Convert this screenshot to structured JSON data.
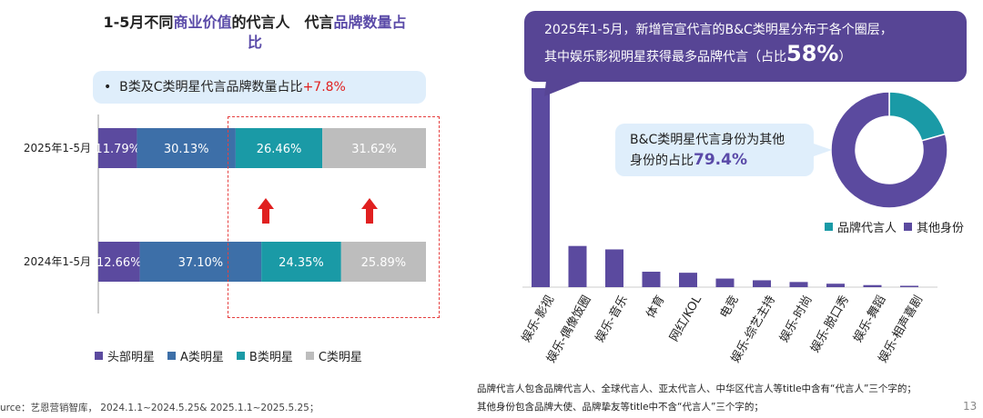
{
  "left_title": {
    "line1_a": "1-5月不同",
    "line1_hl": "商业价值",
    "line1_b": "的代言人　代言",
    "line1_hl2": "品牌数量占",
    "line2_hl": "比"
  },
  "left_tip": {
    "text": "B类及C类明星代言品牌数量占比",
    "value": "+7.8%"
  },
  "source": "urce：艺恩营销智库， 2024.1.1~2024.5.25& 2025.1.1~2025.5.25；",
  "right_bubble": {
    "line1": "2025年1-5月，新增官宣代言的B&C类明星分布于各个圈层，",
    "line2": "其中娱乐影视明星获得最多品牌代言（占比",
    "value": "58%",
    "close": "）"
  },
  "right_tip": {
    "line1": "B&C类明星代言身份为其他",
    "line2": "身份的占比",
    "value": "79.4%"
  },
  "notes": {
    "line1": "品牌代言人包含品牌代言人、全球代言人、亚太代言人、中华区代言人等title中含有“代言人”三个字的；",
    "line2": "其他身份包含品牌大使、品牌挚友等title中不含“代言人”三个字的；"
  },
  "page_number": "13",
  "colors": {
    "head": "#5b4a9f",
    "a": "#3d6fa8",
    "b": "#1a9aa6",
    "c": "#bdbdbd",
    "bar": "#5b4a9f",
    "pie_other": "#5b4a9f",
    "pie_brand": "#1a9aa6",
    "arrow": "#e02020"
  },
  "chart_data": [
    {
      "type": "bar",
      "orientation": "horizontal-stacked-100",
      "categories": [
        "2025年1-5月",
        "2024年1-5月"
      ],
      "series": [
        {
          "name": "头部明星",
          "values": [
            11.79,
            12.66
          ],
          "labels": [
            "11.79%",
            "12.66%"
          ]
        },
        {
          "name": "A类明星",
          "values": [
            30.13,
            37.1
          ],
          "labels": [
            "30.13%",
            "37.10%"
          ]
        },
        {
          "name": "B类明星",
          "values": [
            26.46,
            24.35
          ],
          "labels": [
            "26.46%",
            "24.35%"
          ]
        },
        {
          "name": "C类明星",
          "values": [
            31.62,
            25.89
          ],
          "labels": [
            "31.62%",
            "25.89%"
          ]
        }
      ],
      "legend": "bottom"
    },
    {
      "type": "bar",
      "categories": [
        "娱乐-影视",
        "娱乐-偶像饭圈",
        "娱乐-音乐",
        "体育",
        "网红/KOL",
        "电竞",
        "娱乐-综艺主持",
        "娱乐-时尚",
        "娱乐-脱口秀",
        "娱乐-舞蹈",
        "娱乐-相声喜剧"
      ],
      "values": [
        58,
        12,
        11,
        4.5,
        4.2,
        2.5,
        2,
        1.5,
        1,
        0.6,
        0.4
      ],
      "ylim": [
        0,
        58
      ]
    },
    {
      "type": "pie",
      "style": "donut",
      "labels": [
        "品牌代言人",
        "其他身份"
      ],
      "values": [
        20.6,
        79.4
      ],
      "legend": "bottom"
    }
  ]
}
